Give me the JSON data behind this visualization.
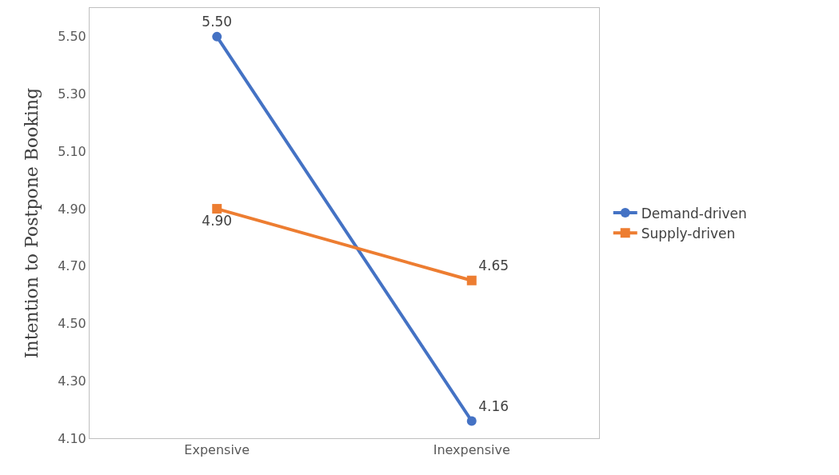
{
  "chart_data": {
    "type": "line",
    "ylabel": "Intention to Postpone Booking",
    "categories": [
      "Expensive",
      "Inexpensive"
    ],
    "series": [
      {
        "name": "Demand-driven",
        "color": "#4472c4",
        "values": [
          5.5,
          4.16
        ],
        "marker": "circle",
        "value_labels": [
          "5.50",
          "4.16"
        ]
      },
      {
        "name": "Supply-driven",
        "color": "#ed7d31",
        "values": [
          4.9,
          4.65
        ],
        "marker": "square",
        "value_labels": [
          "4.90",
          "4.65"
        ]
      }
    ],
    "ylim": [
      4.1,
      5.6
    ],
    "yticks": [
      {
        "value": 4.1,
        "label": "4.10"
      },
      {
        "value": 4.3,
        "label": "4.30"
      },
      {
        "value": 4.5,
        "label": "4.50"
      },
      {
        "value": 4.7,
        "label": "4.70"
      },
      {
        "value": 4.9,
        "label": "4.90"
      },
      {
        "value": 5.1,
        "label": "5.10"
      },
      {
        "value": 5.3,
        "label": "5.30"
      },
      {
        "value": 5.5,
        "label": "5.50"
      }
    ],
    "legend": "right",
    "line_style": "solid"
  }
}
